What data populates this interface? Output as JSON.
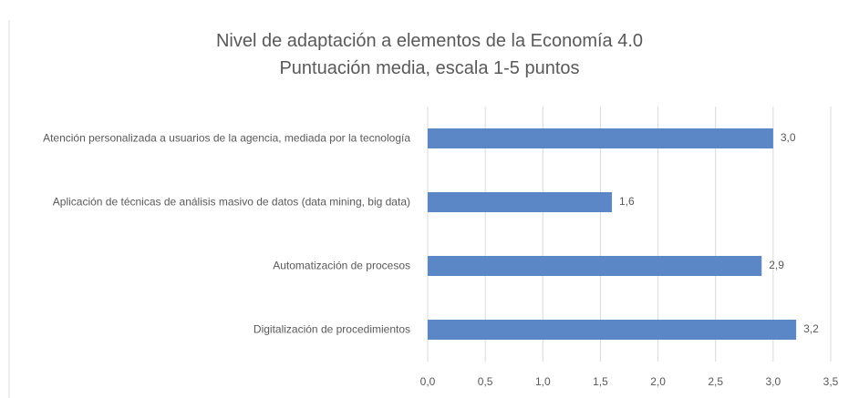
{
  "chart_data": {
    "type": "barh",
    "title": "Nivel de adaptación a elementos de la Economía 4.0",
    "subtitle": "Puntuación media, escala 1-5 puntos",
    "categories": [
      "Atención personalizada a usuarios de la agencia, mediada por la tecnología",
      "Aplicación de técnicas de análisis masivo de datos (data mining, big data)",
      "Automatización de procesos",
      "Digitalización de procedimientos"
    ],
    "values": [
      3.0,
      1.6,
      2.9,
      3.2
    ],
    "value_labels": [
      "3,0",
      "1,6",
      "2,9",
      "3,2"
    ],
    "color": "#5b87c6",
    "xlim": [
      0,
      3.5
    ],
    "xticks": [
      {
        "value": 0,
        "label": "0,0"
      },
      {
        "value": 0.5,
        "label": "0,5"
      },
      {
        "value": 1,
        "label": "1,0"
      },
      {
        "value": 1.5,
        "label": "1,5"
      },
      {
        "value": 2,
        "label": "2,0"
      },
      {
        "value": 2.5,
        "label": "2,5"
      },
      {
        "value": 3,
        "label": "3,0"
      },
      {
        "value": 3.5,
        "label": "3,5"
      }
    ],
    "grid": true
  }
}
